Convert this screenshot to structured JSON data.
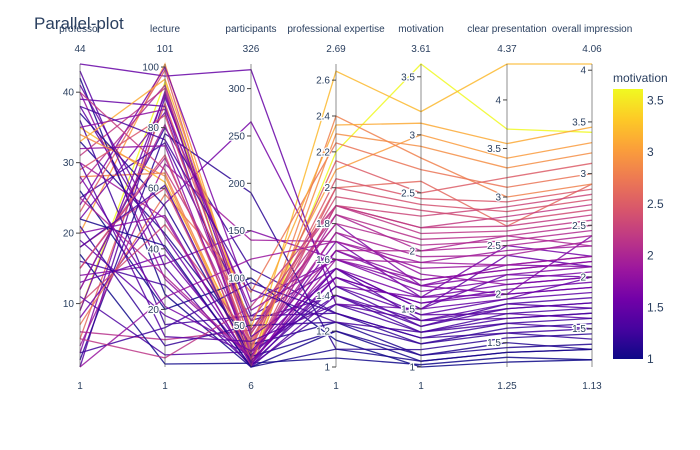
{
  "chart_data": {
    "type": "parallel_coordinates",
    "title": "Parallel-plot",
    "color_dimension": "motivation",
    "colorscale": [
      "#0d0887",
      "#46039f",
      "#7201a8",
      "#9c179e",
      "#bd3786",
      "#d8576b",
      "#ed7953",
      "#fb9f3a",
      "#fdca26",
      "#f0f921"
    ],
    "colorbar": {
      "title": "motivation",
      "range": [
        1,
        3.61
      ],
      "ticks": [
        1,
        1.5,
        2,
        2.5,
        3,
        3.5
      ]
    },
    "dimensions": [
      {
        "label": "professor",
        "range": [
          1,
          44
        ],
        "ticks": [
          10,
          20,
          30,
          40
        ]
      },
      {
        "label": "lecture",
        "range": [
          1,
          101
        ],
        "ticks": [
          20,
          40,
          60,
          80,
          100
        ]
      },
      {
        "label": "participants",
        "range": [
          6,
          326
        ],
        "ticks": [
          50,
          100,
          150,
          200,
          250,
          300
        ]
      },
      {
        "label": "professional expertise",
        "range": [
          1,
          2.69
        ],
        "ticks": [
          1,
          1.2,
          1.4,
          1.6,
          1.8,
          2,
          2.2,
          2.4,
          2.6
        ]
      },
      {
        "label": "motivation",
        "range": [
          1,
          3.61
        ],
        "ticks": [
          1,
          1.5,
          2,
          2.5,
          3,
          3.5
        ]
      },
      {
        "label": "clear presentation",
        "range": [
          1.25,
          4.37
        ],
        "ticks": [
          1.5,
          2,
          2.5,
          3,
          3.5,
          4
        ]
      },
      {
        "label": "overall impression",
        "range": [
          1.13,
          4.06
        ],
        "ticks": [
          1.5,
          2,
          2.5,
          3,
          3.5,
          4
        ]
      }
    ],
    "rows": [
      [
        1,
        90,
        60,
        1.55,
        1.4,
        1.9,
        1.7
      ],
      [
        3,
        92,
        45,
        1.8,
        1.7,
        2.3,
        2.1
      ],
      [
        5,
        88,
        32,
        2.0,
        2.6,
        2.7,
        2.9
      ],
      [
        9,
        95,
        14,
        2.2,
        3.61,
        3.7,
        3.4
      ],
      [
        12,
        80,
        110,
        1.3,
        1.2,
        1.6,
        1.4
      ],
      [
        15,
        70,
        25,
        1.65,
        2.0,
        2.6,
        2.3
      ],
      [
        18,
        60,
        8,
        1.9,
        2.3,
        2.9,
        2.8
      ],
      [
        20,
        101,
        40,
        2.1,
        3.0,
        3.4,
        3.3
      ],
      [
        22,
        85,
        18,
        1.7,
        1.6,
        2.0,
        1.9
      ],
      [
        25,
        75,
        55,
        1.4,
        1.3,
        1.7,
        1.5
      ],
      [
        28,
        65,
        12,
        2.4,
        2.8,
        3.0,
        2.9
      ],
      [
        30,
        50,
        9,
        1.6,
        1.9,
        2.3,
        2.2
      ],
      [
        33,
        45,
        30,
        1.25,
        1.1,
        1.5,
        1.3
      ],
      [
        35,
        62,
        20,
        2.65,
        3.2,
        4.37,
        4.06
      ],
      [
        38,
        40,
        7,
        1.5,
        1.45,
        1.8,
        1.6
      ],
      [
        40,
        30,
        15,
        1.75,
        1.8,
        2.1,
        2.0
      ],
      [
        44,
        97,
        320,
        1.35,
        1.5,
        2.2,
        2.0
      ],
      [
        42,
        25,
        6,
        1.2,
        1.05,
        1.4,
        1.3
      ],
      [
        8,
        55,
        265,
        1.45,
        1.6,
        2.5,
        2.2
      ],
      [
        14,
        35,
        150,
        1.6,
        1.7,
        2.0,
        2.4
      ],
      [
        26,
        20,
        100,
        1.15,
        1.0,
        1.3,
        1.2
      ],
      [
        36,
        15,
        60,
        1.3,
        1.25,
        1.6,
        1.5
      ],
      [
        6,
        10,
        45,
        1.85,
        2.1,
        2.6,
        2.5
      ],
      [
        11,
        5,
        22,
        1.4,
        1.35,
        1.9,
        1.8
      ],
      [
        17,
        2,
        10,
        1.05,
        1.02,
        1.35,
        1.2
      ],
      [
        23,
        99,
        28,
        2.15,
        2.5,
        3.2,
        3.1
      ],
      [
        31,
        93,
        16,
        1.9,
        2.2,
        2.8,
        2.7
      ],
      [
        39,
        87,
        11,
        1.55,
        1.5,
        2.4,
        2.1
      ],
      [
        2,
        78,
        190,
        1.1,
        1.15,
        1.55,
        1.45
      ],
      [
        4,
        68,
        140,
        1.7,
        1.9,
        2.45,
        2.3
      ],
      [
        7,
        58,
        85,
        2.25,
        2.7,
        3.1,
        3.0
      ],
      [
        10,
        48,
        35,
        1.95,
        2.35,
        2.75,
        2.65
      ],
      [
        13,
        38,
        13,
        1.5,
        1.55,
        2.05,
        1.95
      ],
      [
        16,
        28,
        8,
        1.35,
        1.3,
        1.8,
        1.7
      ],
      [
        19,
        18,
        19,
        1.45,
        1.45,
        1.95,
        1.85
      ],
      [
        21,
        8,
        50,
        1.25,
        1.2,
        1.65,
        1.55
      ],
      [
        24,
        100,
        75,
        1.6,
        1.65,
        2.15,
        2.05
      ],
      [
        27,
        94,
        42,
        1.8,
        2.05,
        2.55,
        2.45
      ],
      [
        29,
        84,
        26,
        2.05,
        2.45,
        2.95,
        2.85
      ],
      [
        32,
        74,
        9,
        1.65,
        1.75,
        2.25,
        2.15
      ],
      [
        34,
        64,
        7,
        2.3,
        2.9,
        3.3,
        3.2
      ],
      [
        37,
        54,
        17,
        1.2,
        1.1,
        1.45,
        1.35
      ],
      [
        41,
        44,
        12,
        1.55,
        1.5,
        1.95,
        2.0
      ],
      [
        43,
        34,
        6,
        1.4,
        1.4,
        1.75,
        1.65
      ],
      [
        1,
        24,
        120,
        1.7,
        1.85,
        2.3,
        2.2
      ],
      [
        3,
        14,
        95,
        1.3,
        1.25,
        1.7,
        1.6
      ],
      [
        5,
        4,
        70,
        1.9,
        2.15,
        2.65,
        2.55
      ],
      [
        9,
        91,
        38,
        1.5,
        1.55,
        2.0,
        1.9
      ],
      [
        12,
        81,
        21,
        1.75,
        1.95,
        2.4,
        2.35
      ],
      [
        15,
        71,
        14,
        2.0,
        2.4,
        2.85,
        2.75
      ],
      [
        18,
        61,
        10,
        1.45,
        1.35,
        1.85,
        1.75
      ],
      [
        20,
        51,
        8,
        1.65,
        1.7,
        2.2,
        2.1
      ],
      [
        22,
        41,
        6,
        1.1,
        1.05,
        1.4,
        1.3
      ],
      [
        25,
        31,
        16,
        1.85,
        2.0,
        2.5,
        2.4
      ],
      [
        28,
        21,
        23,
        1.55,
        1.6,
        2.1,
        2.0
      ],
      [
        30,
        11,
        33,
        1.35,
        1.4,
        1.85,
        1.75
      ],
      [
        33,
        96,
        48,
        2.35,
        3.1,
        3.55,
        3.45
      ],
      [
        35,
        86,
        66,
        1.6,
        1.75,
        2.25,
        2.15
      ],
      [
        38,
        76,
        88,
        1.25,
        1.3,
        1.75,
        1.65
      ],
      [
        40,
        66,
        55,
        1.9,
        2.2,
        2.7,
        2.6
      ]
    ]
  }
}
